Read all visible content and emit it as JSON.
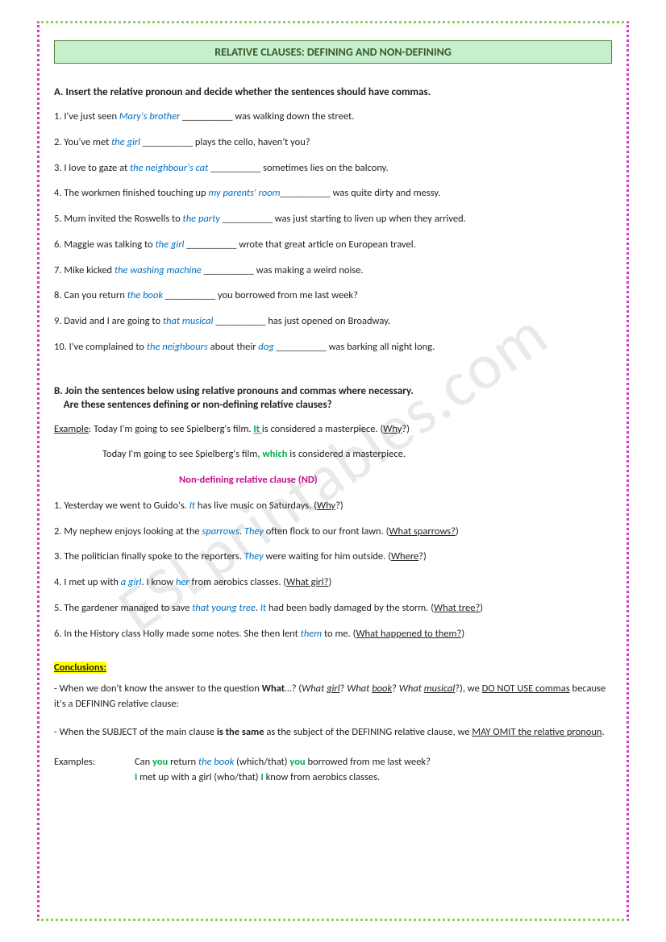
{
  "title": "RELATIVE CLAUSES: DEFINING AND NON-DEFINING",
  "watermark": "ESLprintables.com",
  "sectionA": {
    "head": "A. Insert the relative pronoun and decide whether the sentences should have commas.",
    "items": [
      {
        "n": "1.",
        "pre": "I've just seen ",
        "it": "Mary's brother",
        "post": " __________ was walking down the street."
      },
      {
        "n": "2.",
        "pre": "You've met ",
        "it": "the girl",
        "post": " __________ plays the cello, haven't you?"
      },
      {
        "n": "3.",
        "pre": "I love to gaze at ",
        "it": "the neighbour's cat",
        "post": " __________ sometimes lies on the balcony."
      },
      {
        "n": "4.",
        "pre": "The workmen finished touching up ",
        "it": "my parents' room",
        "post": "__________ was quite dirty and messy."
      },
      {
        "n": "5.",
        "pre": "Mum invited the Roswells to ",
        "it": "the party",
        "post": " __________ was just starting to liven up when they arrived."
      },
      {
        "n": "6.",
        "pre": "Maggie was talking to ",
        "it": "the girl",
        "post": " __________ wrote that great article on European travel."
      },
      {
        "n": "7.",
        "pre": "Mike kicked ",
        "it": "the washing machine",
        "post": " __________ was making a weird noise."
      },
      {
        "n": "8.",
        "pre": "Can you return ",
        "it": "the book",
        "post": " __________ you borrowed from me last week?"
      },
      {
        "n": "9.",
        "pre": "David and I are going to ",
        "it": "that musical",
        "post": " __________ has just opened on Broadway."
      },
      {
        "n": "10.",
        "pre": "I've complained to ",
        "it": "the neighbours",
        "mid": " about their ",
        "it2": "dog",
        "post": " __________ was barking all night long."
      }
    ]
  },
  "sectionB": {
    "head1": "B. Join the sentences below using relative pronouns and commas where necessary.",
    "head2": "    Are these sentences defining or non-defining relative clauses?",
    "exLabel": "Example",
    "exLine1a": ": Today I'm going to see Spielberg's film. ",
    "exLine1it": "It ",
    "exLine1b": "is considered a masterpiece. (",
    "exLine1q": "Why",
    "exLine1c": "?)",
    "exLine2a": "Today I'm going to see Spielberg's film",
    "exLine2comma": ", ",
    "exLine2which": "which",
    "exLine2b": " is considered a masterpiece.",
    "exLine3": "Non-defining relative clause (ND)",
    "items": [
      {
        "n": "1.",
        "pre": "Yesterday we went to Guido's. ",
        "it": "It",
        "mid": " has live music on Saturdays. (",
        "q": "Why",
        "post": "?)"
      },
      {
        "n": "2.",
        "pre": "My nephew enjoys looking at the ",
        "it": "sparrows",
        "mid": ". ",
        "it2": "They",
        "mid2": " often flock to our front lawn. (",
        "q": "What sparrows?",
        "post": ")"
      },
      {
        "n": "3.",
        "pre": "The politician finally spoke to the reporters. ",
        "it": "They",
        "mid": " were waiting for him outside. (",
        "q": "Where",
        "post": "?)"
      },
      {
        "n": "4.",
        "pre": "I met up with ",
        "it": "a girl",
        "mid": ". I know ",
        "it2": "her",
        "mid2": " from aerobics classes. (",
        "q": "What girl?",
        "post": ")"
      },
      {
        "n": "5.",
        "pre": "The gardener managed to save ",
        "it": "that young tree",
        "mid": ". ",
        "it2": "It",
        "mid2": " had been badly damaged by the storm. (",
        "q": "What tree?",
        "post": ")"
      },
      {
        "n": "6.",
        "pre": "In the History class Holly made some notes. She then lent ",
        "it": "them",
        "mid": " to me. (",
        "q": "What happened to them?",
        "post": ")"
      }
    ]
  },
  "conclusions": {
    "label": "Conclusions:",
    "l1a": "- When we don't know the answer to the question ",
    "l1b": "What",
    "l1c": "…? (",
    "l1d": "What ",
    "l1e": "girl",
    "l1f": "? ",
    "l1g": "What ",
    "l1h": "book",
    "l1i": "? ",
    "l1j": "What ",
    "l1k": "musical",
    "l1l": "?), we ",
    "l1m": "DO NOT USE commas",
    "l1n": " because it's a DEFINING relative clause:",
    "l2a": "- When the SUBJECT of the main clause ",
    "l2b": "is the same",
    "l2c": " as the subject of the DEFINING relative clause, we ",
    "l2d": "MAY OMIT the relative pronoun",
    "l2e": ".",
    "exLabel": "Examples:",
    "ex1a": "Can ",
    "ex1you1": "you",
    "ex1b": " return ",
    "ex1it": "the book",
    "ex1c": " (which/that) ",
    "ex1you2": "you",
    "ex1d": " borrowed from me last week?",
    "ex2a": "I",
    "ex2b": " met up with a girl (who/that) ",
    "ex2c": "I",
    "ex2d": " know from aerobics classes."
  }
}
